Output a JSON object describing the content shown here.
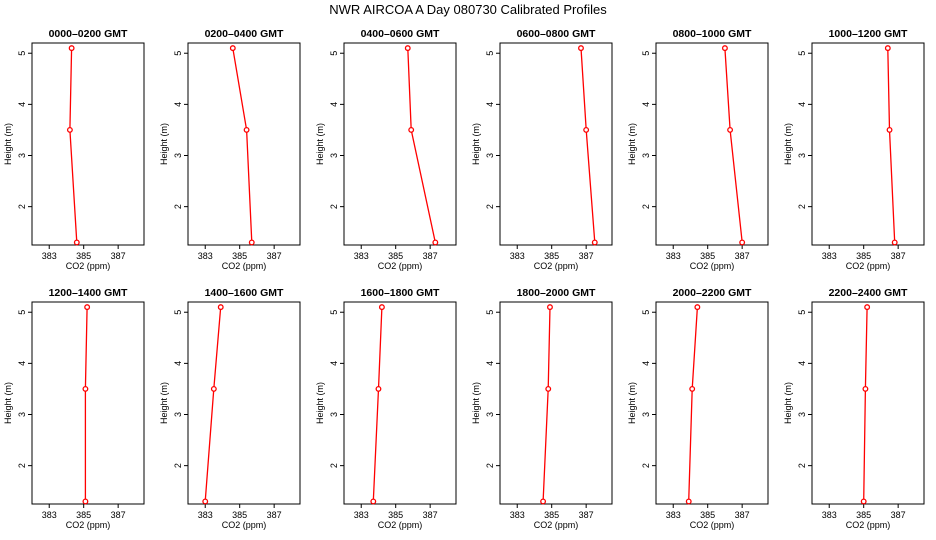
{
  "title": "NWR AIRCOA A  Day 080730  Calibrated Profiles",
  "chart_data": [
    {
      "type": "line",
      "title": "0000–0200 GMT",
      "xlabel": "CO2 (ppm)",
      "ylabel": "Height (m)",
      "x_ticks": [
        "383",
        "385",
        "387"
      ],
      "y_ticks": [
        "2",
        "3",
        "4",
        "5"
      ],
      "xlim": [
        382.0,
        388.5
      ],
      "ylim": [
        1.25,
        5.2
      ],
      "color": "#ff0000",
      "series": [
        {
          "x": [
            384.3,
            384.2,
            384.6
          ],
          "y": [
            5.1,
            3.5,
            1.3
          ]
        }
      ]
    },
    {
      "type": "line",
      "title": "0200–0400 GMT",
      "xlabel": "CO2 (ppm)",
      "ylabel": "Height (m)",
      "x_ticks": [
        "383",
        "385",
        "387"
      ],
      "y_ticks": [
        "2",
        "3",
        "4",
        "5"
      ],
      "xlim": [
        382.0,
        388.5
      ],
      "ylim": [
        1.25,
        5.2
      ],
      "color": "#ff0000",
      "series": [
        {
          "x": [
            384.6,
            385.4,
            385.7
          ],
          "y": [
            5.1,
            3.5,
            1.3
          ]
        }
      ]
    },
    {
      "type": "line",
      "title": "0400–0600 GMT",
      "xlabel": "CO2 (ppm)",
      "ylabel": "Height (m)",
      "x_ticks": [
        "383",
        "385",
        "387"
      ],
      "y_ticks": [
        "2",
        "3",
        "4",
        "5"
      ],
      "xlim": [
        382.0,
        388.5
      ],
      "ylim": [
        1.25,
        5.2
      ],
      "color": "#ff0000",
      "series": [
        {
          "x": [
            385.7,
            385.9,
            387.3
          ],
          "y": [
            5.1,
            3.5,
            1.3
          ]
        }
      ]
    },
    {
      "type": "line",
      "title": "0600–0800 GMT",
      "xlabel": "CO2 (ppm)",
      "ylabel": "Height (m)",
      "x_ticks": [
        "383",
        "385",
        "387"
      ],
      "y_ticks": [
        "2",
        "3",
        "4",
        "5"
      ],
      "xlim": [
        382.0,
        388.5
      ],
      "ylim": [
        1.25,
        5.2
      ],
      "color": "#ff0000",
      "series": [
        {
          "x": [
            386.7,
            387.0,
            387.5
          ],
          "y": [
            5.1,
            3.5,
            1.3
          ]
        }
      ]
    },
    {
      "type": "line",
      "title": "0800–1000 GMT",
      "xlabel": "CO2 (ppm)",
      "ylabel": "Height (m)",
      "x_ticks": [
        "383",
        "385",
        "387"
      ],
      "y_ticks": [
        "2",
        "3",
        "4",
        "5"
      ],
      "xlim": [
        382.0,
        388.5
      ],
      "ylim": [
        1.25,
        5.2
      ],
      "color": "#ff0000",
      "series": [
        {
          "x": [
            386.0,
            386.3,
            387.0
          ],
          "y": [
            5.1,
            3.5,
            1.3
          ]
        }
      ]
    },
    {
      "type": "line",
      "title": "1000–1200 GMT",
      "xlabel": "CO2 (ppm)",
      "ylabel": "Height (m)",
      "x_ticks": [
        "383",
        "385",
        "387"
      ],
      "y_ticks": [
        "2",
        "3",
        "4",
        "5"
      ],
      "xlim": [
        382.0,
        388.5
      ],
      "ylim": [
        1.25,
        5.2
      ],
      "color": "#ff0000",
      "series": [
        {
          "x": [
            386.4,
            386.5,
            386.8
          ],
          "y": [
            5.1,
            3.5,
            1.3
          ]
        }
      ]
    },
    {
      "type": "line",
      "title": "1200–1400 GMT",
      "xlabel": "CO2 (ppm)",
      "ylabel": "Height (m)",
      "x_ticks": [
        "383",
        "385",
        "387"
      ],
      "y_ticks": [
        "2",
        "3",
        "4",
        "5"
      ],
      "xlim": [
        382.0,
        388.5
      ],
      "ylim": [
        1.25,
        5.2
      ],
      "color": "#ff0000",
      "series": [
        {
          "x": [
            385.2,
            385.1,
            385.1
          ],
          "y": [
            5.1,
            3.5,
            1.3
          ]
        }
      ]
    },
    {
      "type": "line",
      "title": "1400–1600 GMT",
      "xlabel": "CO2 (ppm)",
      "ylabel": "Height (m)",
      "x_ticks": [
        "383",
        "385",
        "387"
      ],
      "y_ticks": [
        "2",
        "3",
        "4",
        "5"
      ],
      "xlim": [
        382.0,
        388.5
      ],
      "ylim": [
        1.25,
        5.2
      ],
      "color": "#ff0000",
      "series": [
        {
          "x": [
            383.9,
            383.5,
            383.0
          ],
          "y": [
            5.1,
            3.5,
            1.3
          ]
        }
      ]
    },
    {
      "type": "line",
      "title": "1600–1800 GMT",
      "xlabel": "CO2 (ppm)",
      "ylabel": "Height (m)",
      "x_ticks": [
        "383",
        "385",
        "387"
      ],
      "y_ticks": [
        "2",
        "3",
        "4",
        "5"
      ],
      "xlim": [
        382.0,
        388.5
      ],
      "ylim": [
        1.25,
        5.2
      ],
      "color": "#ff0000",
      "series": [
        {
          "x": [
            384.2,
            384.0,
            383.7
          ],
          "y": [
            5.1,
            3.5,
            1.3
          ]
        }
      ]
    },
    {
      "type": "line",
      "title": "1800–2000 GMT",
      "xlabel": "CO2 (ppm)",
      "ylabel": "Height (m)",
      "x_ticks": [
        "383",
        "385",
        "387"
      ],
      "y_ticks": [
        "2",
        "3",
        "4",
        "5"
      ],
      "xlim": [
        382.0,
        388.5
      ],
      "ylim": [
        1.25,
        5.2
      ],
      "color": "#ff0000",
      "series": [
        {
          "x": [
            384.9,
            384.8,
            384.5
          ],
          "y": [
            5.1,
            3.5,
            1.3
          ]
        }
      ]
    },
    {
      "type": "line",
      "title": "2000–2200 GMT",
      "xlabel": "CO2 (ppm)",
      "ylabel": "Height (m)",
      "x_ticks": [
        "383",
        "385",
        "387"
      ],
      "y_ticks": [
        "2",
        "3",
        "4",
        "5"
      ],
      "xlim": [
        382.0,
        388.5
      ],
      "ylim": [
        1.25,
        5.2
      ],
      "color": "#ff0000",
      "series": [
        {
          "x": [
            384.4,
            384.1,
            383.9
          ],
          "y": [
            5.1,
            3.5,
            1.3
          ]
        }
      ]
    },
    {
      "type": "line",
      "title": "2200–2400 GMT",
      "xlabel": "CO2 (ppm)",
      "ylabel": "Height (m)",
      "x_ticks": [
        "383",
        "385",
        "387"
      ],
      "y_ticks": [
        "2",
        "3",
        "4",
        "5"
      ],
      "xlim": [
        382.0,
        388.5
      ],
      "ylim": [
        1.25,
        5.2
      ],
      "color": "#ff0000",
      "series": [
        {
          "x": [
            385.2,
            385.1,
            385.0
          ],
          "y": [
            5.1,
            3.5,
            1.3
          ]
        }
      ]
    }
  ]
}
